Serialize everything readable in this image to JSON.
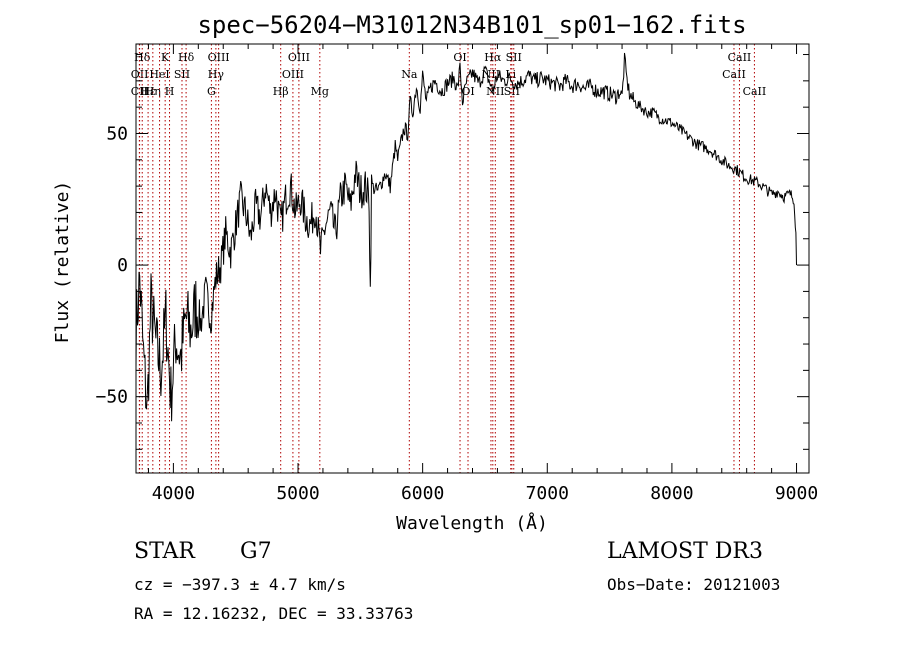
{
  "colors": {
    "background": "#ffffff",
    "axis": "#000000",
    "spectrum": "#000000",
    "line_markers": "#b00000"
  },
  "chart_data": {
    "type": "line",
    "title": "spec−56204−M31012N34B101_sp01−162.fits",
    "xlabel": "Wavelength (Å)",
    "ylabel": "Flux (relative)",
    "xlim": [
      3700,
      9100
    ],
    "ylim": [
      -79,
      84
    ],
    "xticks": [
      4000,
      5000,
      6000,
      7000,
      8000,
      9000
    ],
    "xtick_labels": [
      "4000",
      "5000",
      "6000",
      "7000",
      "8000",
      "9000"
    ],
    "yticks": [
      -50,
      0,
      50
    ],
    "ytick_labels": [
      "−50",
      "0",
      "50"
    ],
    "grid": false,
    "legend": "none",
    "series": [
      {
        "name": "spectrum",
        "points": [
          [
            3700,
            -25
          ],
          [
            3730,
            -5
          ],
          [
            3760,
            -35
          ],
          [
            3790,
            -55
          ],
          [
            3820,
            -15
          ],
          [
            3860,
            -30
          ],
          [
            3900,
            -40
          ],
          [
            3940,
            -20
          ],
          [
            3980,
            -50
          ],
          [
            4020,
            -28
          ],
          [
            4060,
            -35
          ],
          [
            4100,
            -20
          ],
          [
            4140,
            -25
          ],
          [
            4180,
            -15
          ],
          [
            4220,
            -22
          ],
          [
            4260,
            -10
          ],
          [
            4300,
            -20
          ],
          [
            4340,
            -5
          ],
          [
            4380,
            0
          ],
          [
            4420,
            12
          ],
          [
            4460,
            5
          ],
          [
            4500,
            15
          ],
          [
            4540,
            25
          ],
          [
            4580,
            20
          ],
          [
            4620,
            10
          ],
          [
            4660,
            22
          ],
          [
            4700,
            18
          ],
          [
            4740,
            30
          ],
          [
            4780,
            20
          ],
          [
            4820,
            28
          ],
          [
            4860,
            15
          ],
          [
            4900,
            25
          ],
          [
            4940,
            30
          ],
          [
            4980,
            20
          ],
          [
            5020,
            25
          ],
          [
            5060,
            18
          ],
          [
            5100,
            15
          ],
          [
            5140,
            22
          ],
          [
            5180,
            5
          ],
          [
            5220,
            15
          ],
          [
            5260,
            20
          ],
          [
            5300,
            12
          ],
          [
            5340,
            25
          ],
          [
            5380,
            30
          ],
          [
            5420,
            22
          ],
          [
            5460,
            35
          ],
          [
            5500,
            28
          ],
          [
            5540,
            30
          ],
          [
            5570,
            25
          ],
          [
            5580,
            -10
          ],
          [
            5590,
            30
          ],
          [
            5640,
            28
          ],
          [
            5700,
            35
          ],
          [
            5740,
            30
          ],
          [
            5780,
            45
          ],
          [
            5800,
            40
          ],
          [
            5850,
            52
          ],
          [
            5880,
            50
          ],
          [
            5900,
            62
          ],
          [
            5920,
            58
          ],
          [
            5950,
            68
          ],
          [
            5980,
            60
          ],
          [
            6000,
            72
          ],
          [
            6030,
            62
          ],
          [
            6060,
            67
          ],
          [
            6100,
            70
          ],
          [
            6150,
            66
          ],
          [
            6200,
            69
          ],
          [
            6250,
            71
          ],
          [
            6280,
            67
          ],
          [
            6300,
            75
          ],
          [
            6320,
            62
          ],
          [
            6350,
            69
          ],
          [
            6400,
            73
          ],
          [
            6450,
            69
          ],
          [
            6500,
            74
          ],
          [
            6550,
            68
          ],
          [
            6560,
            66
          ],
          [
            6600,
            72
          ],
          [
            6650,
            70
          ],
          [
            6700,
            71
          ],
          [
            6750,
            69
          ],
          [
            6800,
            70
          ],
          [
            6850,
            72
          ],
          [
            6900,
            70
          ],
          [
            6950,
            71
          ],
          [
            7000,
            70
          ],
          [
            7050,
            69
          ],
          [
            7100,
            68
          ],
          [
            7150,
            70
          ],
          [
            7200,
            68
          ],
          [
            7250,
            69
          ],
          [
            7300,
            67
          ],
          [
            7350,
            68
          ],
          [
            7400,
            66
          ],
          [
            7450,
            66
          ],
          [
            7500,
            65
          ],
          [
            7550,
            64
          ],
          [
            7580,
            66
          ],
          [
            7600,
            64
          ],
          [
            7620,
            78
          ],
          [
            7640,
            70
          ],
          [
            7660,
            65
          ],
          [
            7700,
            62
          ],
          [
            7750,
            60
          ],
          [
            7800,
            58
          ],
          [
            7850,
            58
          ],
          [
            7900,
            56
          ],
          [
            7950,
            55
          ],
          [
            8000,
            54
          ],
          [
            8050,
            52
          ],
          [
            8100,
            50
          ],
          [
            8150,
            48
          ],
          [
            8200,
            46
          ],
          [
            8250,
            45
          ],
          [
            8300,
            44
          ],
          [
            8350,
            42
          ],
          [
            8400,
            40
          ],
          [
            8450,
            38
          ],
          [
            8500,
            37
          ],
          [
            8550,
            35
          ],
          [
            8600,
            33
          ],
          [
            8650,
            32
          ],
          [
            8700,
            31
          ],
          [
            8750,
            29
          ],
          [
            8800,
            27
          ],
          [
            8850,
            28
          ],
          [
            8900,
            26
          ],
          [
            8950,
            27
          ],
          [
            8980,
            25
          ],
          [
            8995,
            12
          ],
          [
            9000,
            0
          ]
        ]
      }
    ],
    "lines": [
      {
        "name": "CII",
        "x": 3727,
        "row": 3
      },
      {
        "name": "OII",
        "x": 3729,
        "row": 2
      },
      {
        "name": "Hδ",
        "x": 3750,
        "row": 1
      },
      {
        "name": "Hε",
        "x": 3797,
        "row": 3
      },
      {
        "name": "Hη",
        "x": 3835,
        "row": 3
      },
      {
        "name": "K",
        "x": 3934,
        "row": 1
      },
      {
        "name": "H",
        "x": 3969,
        "row": 3
      },
      {
        "name": "HeI",
        "x": 3889,
        "row": 2
      },
      {
        "name": "SII",
        "x": 4069,
        "row": 2
      },
      {
        "name": "Hδ",
        "x": 4102,
        "row": 1
      },
      {
        "name": "G",
        "x": 4305,
        "row": 3
      },
      {
        "name": "Hγ",
        "x": 4341,
        "row": 2
      },
      {
        "name": "OIII",
        "x": 4363,
        "row": 1
      },
      {
        "name": "Hβ",
        "x": 4861,
        "row": 3
      },
      {
        "name": "OIII",
        "x": 4959,
        "row": 2
      },
      {
        "name": "OIII",
        "x": 5007,
        "row": 1
      },
      {
        "name": "Mg",
        "x": 5175,
        "row": 3
      },
      {
        "name": "Na",
        "x": 5893,
        "row": 2
      },
      {
        "name": "OI",
        "x": 6300,
        "row": 1
      },
      {
        "name": "OI",
        "x": 6364,
        "row": 3
      },
      {
        "name": "NII",
        "x": 6548,
        "row": 2
      },
      {
        "name": "Hα",
        "x": 6563,
        "row": 1
      },
      {
        "name": "NII",
        "x": 6583,
        "row": 3
      },
      {
        "name": "Li",
        "x": 6707,
        "row": 2
      },
      {
        "name": "SII",
        "x": 6716,
        "row": 3
      },
      {
        "name": "SII",
        "x": 6731,
        "row": 1
      },
      {
        "name": "CaII",
        "x": 8498,
        "row": 2
      },
      {
        "name": "CaII",
        "x": 8542,
        "row": 1
      },
      {
        "name": "CaII",
        "x": 8662,
        "row": 3
      }
    ]
  },
  "info": {
    "object_class": "STAR",
    "subclass": "G7",
    "redshift": "cz = −397.3 ± 4.7 km/s",
    "coordinates": "RA =  12.16232, DEC =  33.33763",
    "survey": "LAMOST DR3",
    "obs_date": "Obs−Date: 20121003"
  }
}
